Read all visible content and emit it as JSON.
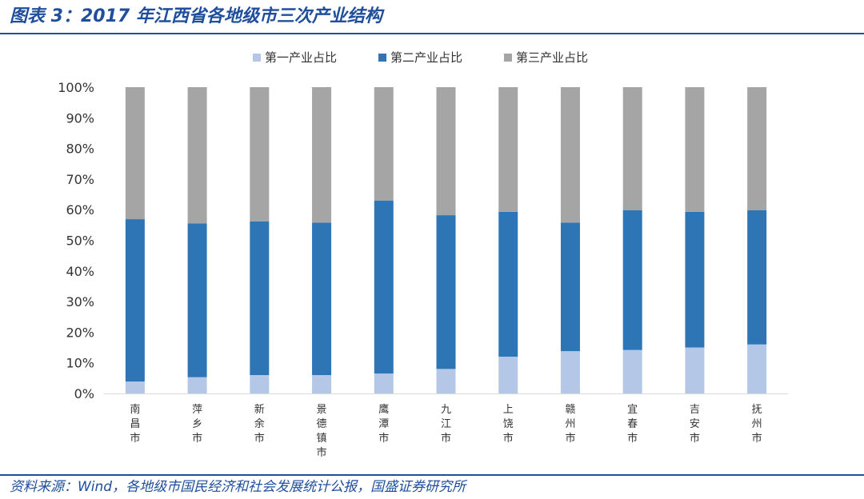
{
  "header": {
    "title": "图表 3：2017 年江西省各地级市三次产业结构"
  },
  "footer": {
    "source": "资料来源：Wind，各地级市国民经济和社会发展统计公报，国盛证券研究所"
  },
  "chart_data": {
    "type": "bar",
    "stacked": true,
    "legend_position": "top",
    "grid": false,
    "ylim": [
      0,
      100
    ],
    "y_ticks": [
      "0%",
      "10%",
      "20%",
      "30%",
      "40%",
      "50%",
      "60%",
      "70%",
      "80%",
      "90%",
      "100%"
    ],
    "categories": [
      "南昌市",
      "萍乡市",
      "新余市",
      "景德镇市",
      "鹰潭市",
      "九江市",
      "上饶市",
      "赣州市",
      "宜春市",
      "吉安市",
      "抚州市"
    ],
    "series": [
      {
        "name": "第一产业占比",
        "color": "#b4c7e7",
        "values": [
          3.9,
          5.3,
          6.0,
          6.0,
          6.5,
          8.0,
          12.0,
          13.8,
          14.2,
          15.0,
          16.0
        ]
      },
      {
        "name": "第二产业占比",
        "color": "#2e75b6",
        "values": [
          53.0,
          50.2,
          50.2,
          49.8,
          56.5,
          50.2,
          47.3,
          42.0,
          45.6,
          44.3,
          43.8
        ]
      },
      {
        "name": "第三产业占比",
        "color": "#a5a5a5",
        "values": [
          43.1,
          44.5,
          43.8,
          44.2,
          37.0,
          41.8,
          40.7,
          44.2,
          40.2,
          40.7,
          40.2
        ]
      }
    ]
  }
}
